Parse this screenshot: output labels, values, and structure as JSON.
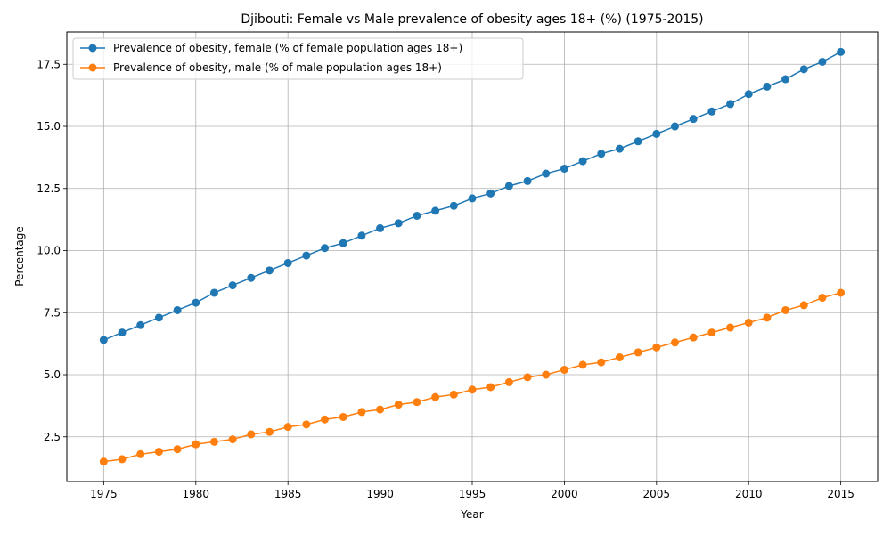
{
  "chart_data": {
    "type": "line",
    "title": "Djibouti: Female vs Male prevalence of obesity ages 18+ (%) (1975-2015)",
    "xlabel": "Year",
    "ylabel": "Percentage",
    "xlim": [
      1973,
      2017
    ],
    "ylim": [
      0.7,
      18.8
    ],
    "x_ticks": [
      1975,
      1980,
      1985,
      1990,
      1995,
      2000,
      2005,
      2010,
      2015
    ],
    "y_ticks": [
      2.5,
      5.0,
      7.5,
      10.0,
      12.5,
      15.0,
      17.5
    ],
    "y_tick_labels": [
      "2.5",
      "5.0",
      "7.5",
      "10.0",
      "12.5",
      "15.0",
      "17.5"
    ],
    "grid": true,
    "legend_position": "upper-left",
    "x": [
      1975,
      1976,
      1977,
      1978,
      1979,
      1980,
      1981,
      1982,
      1983,
      1984,
      1985,
      1986,
      1987,
      1988,
      1989,
      1990,
      1991,
      1992,
      1993,
      1994,
      1995,
      1996,
      1997,
      1998,
      1999,
      2000,
      2001,
      2002,
      2003,
      2004,
      2005,
      2006,
      2007,
      2008,
      2009,
      2010,
      2011,
      2012,
      2013,
      2014,
      2015
    ],
    "series": [
      {
        "name": "Prevalence of obesity, female (% of female population ages 18+)",
        "color": "#1f77b4",
        "values": [
          6.4,
          6.7,
          7.0,
          7.3,
          7.6,
          7.9,
          8.3,
          8.6,
          8.9,
          9.2,
          9.5,
          9.8,
          10.1,
          10.3,
          10.6,
          10.9,
          11.1,
          11.4,
          11.6,
          11.8,
          12.1,
          12.3,
          12.6,
          12.8,
          13.1,
          13.3,
          13.6,
          13.9,
          14.1,
          14.4,
          14.7,
          15.0,
          15.3,
          15.6,
          15.9,
          16.3,
          16.6,
          16.9,
          17.3,
          17.6,
          18.0
        ]
      },
      {
        "name": "Prevalence of obesity, male (% of male population ages 18+)",
        "color": "#ff7f0e",
        "values": [
          1.5,
          1.6,
          1.8,
          1.9,
          2.0,
          2.2,
          2.3,
          2.4,
          2.6,
          2.7,
          2.9,
          3.0,
          3.2,
          3.3,
          3.5,
          3.6,
          3.8,
          3.9,
          4.1,
          4.2,
          4.4,
          4.5,
          4.7,
          4.9,
          5.0,
          5.2,
          5.4,
          5.5,
          5.7,
          5.9,
          6.1,
          6.3,
          6.5,
          6.7,
          6.9,
          7.1,
          7.3,
          7.6,
          7.8,
          8.1,
          8.3
        ]
      }
    ]
  }
}
